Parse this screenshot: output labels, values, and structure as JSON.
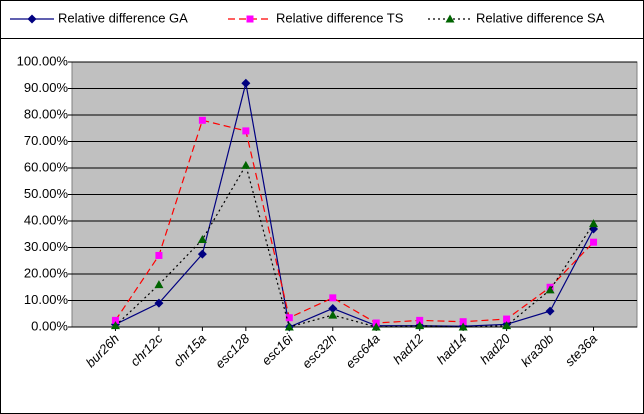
{
  "chart_data": {
    "type": "line",
    "categories": [
      "bur26h",
      "chr12c",
      "chr15a",
      "esc128",
      "esc16i",
      "esc32h",
      "esc64a",
      "had12",
      "had14",
      "had20",
      "kra30b",
      "ste36a"
    ],
    "series": [
      {
        "name": "Relative difference GA",
        "color": "#000080",
        "marker_color": "#000080",
        "marker": "diamond",
        "dash": "solid",
        "values": [
          1,
          9,
          27.5,
          92,
          0,
          7,
          0.5,
          0.5,
          0.3,
          1,
          6,
          37
        ]
      },
      {
        "name": "Relative difference TS",
        "color": "#ff0000",
        "marker_color": "#ff00ff",
        "marker": "square",
        "dash": "dashed",
        "values": [
          2.5,
          27,
          78,
          74,
          3.5,
          11,
          1.5,
          2.5,
          2,
          3,
          15,
          32
        ]
      },
      {
        "name": "Relative difference SA",
        "color": "#000000",
        "marker_color": "#006400",
        "marker": "triangle",
        "dash": "dotted",
        "values": [
          0.5,
          16,
          33,
          61,
          0,
          4.5,
          0,
          0.5,
          0,
          0.5,
          14,
          39
        ]
      }
    ],
    "ylim": [
      0,
      100
    ],
    "yticks": [
      {
        "value": 0,
        "label": "0.00%"
      },
      {
        "value": 10,
        "label": "10.00%"
      },
      {
        "value": 20,
        "label": "20.00%"
      },
      {
        "value": 30,
        "label": "30.00%"
      },
      {
        "value": 40,
        "label": "40.00%"
      },
      {
        "value": 50,
        "label": "50.00%"
      },
      {
        "value": 60,
        "label": "60.00%"
      },
      {
        "value": 70,
        "label": "70.00%"
      },
      {
        "value": 80,
        "label": "80.00%"
      },
      {
        "value": 90,
        "label": "90.00%"
      },
      {
        "value": 100,
        "label": "100.00%"
      }
    ],
    "grid": true,
    "legend": "top",
    "plot_background": "#c0c0c0"
  }
}
